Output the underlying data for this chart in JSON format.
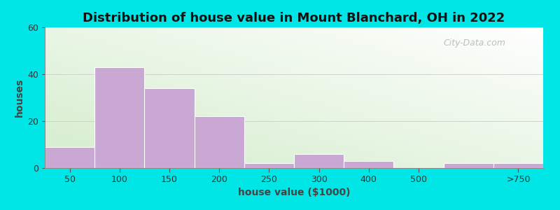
{
  "title": "Distribution of house value in Mount Blanchard, OH in 2022",
  "xlabel": "house value ($1000)",
  "ylabel": "houses",
  "bin_edges": [
    0,
    1,
    2,
    3,
    4,
    5,
    6,
    7,
    8,
    9,
    10
  ],
  "tick_positions": [
    0.5,
    1.5,
    2.5,
    3.5,
    4.5,
    5.5,
    6.5,
    7.5,
    9.5
  ],
  "tick_labels": [
    "50",
    "100",
    "150",
    "200",
    "250",
    "300",
    "400",
    "500",
    ">750"
  ],
  "bar_values": [
    9,
    43,
    34,
    22,
    2,
    6,
    3,
    0,
    2,
    2
  ],
  "bar_lefts": [
    0,
    1,
    2,
    3,
    4,
    5,
    6,
    7,
    8,
    9
  ],
  "bar_widths": [
    1,
    1,
    1,
    1,
    1,
    1,
    1,
    1,
    1,
    1
  ],
  "bar_color": "#c9a8d4",
  "bar_edgecolor": "#ffffff",
  "ylim": [
    0,
    60
  ],
  "xlim": [
    0,
    10
  ],
  "yticks": [
    0,
    20,
    40,
    60
  ],
  "background_outer": "#00e5e5",
  "bg_color_left": "#d4edcc",
  "bg_color_right": "#f0faf0",
  "title_fontsize": 13,
  "axis_label_fontsize": 10,
  "tick_fontsize": 9,
  "watermark_text": "City-Data.com"
}
